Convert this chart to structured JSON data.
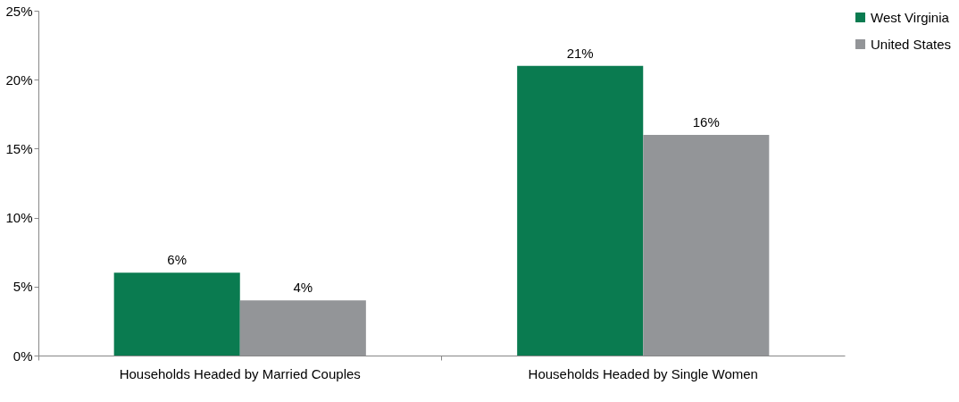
{
  "chart_data": {
    "type": "bar",
    "categories": [
      "Households Headed by Married Couples",
      "Households Headed by Single Women"
    ],
    "series": [
      {
        "name": "West Virginia",
        "color": "#0a7b50",
        "values": [
          6,
          21
        ],
        "value_labels": [
          "6%",
          "21%"
        ]
      },
      {
        "name": "United States",
        "color": "#939598",
        "values": [
          4,
          16
        ],
        "value_labels": [
          "4%",
          "16%"
        ]
      }
    ],
    "ylim": [
      0,
      25
    ],
    "yticks": [
      {
        "value": 0,
        "label": "0%"
      },
      {
        "value": 5,
        "label": "5%"
      },
      {
        "value": 10,
        "label": "10%"
      },
      {
        "value": 15,
        "label": "15%"
      },
      {
        "value": 20,
        "label": "20%"
      },
      {
        "value": 25,
        "label": "25%"
      }
    ],
    "grid": false,
    "legend": "top right"
  }
}
